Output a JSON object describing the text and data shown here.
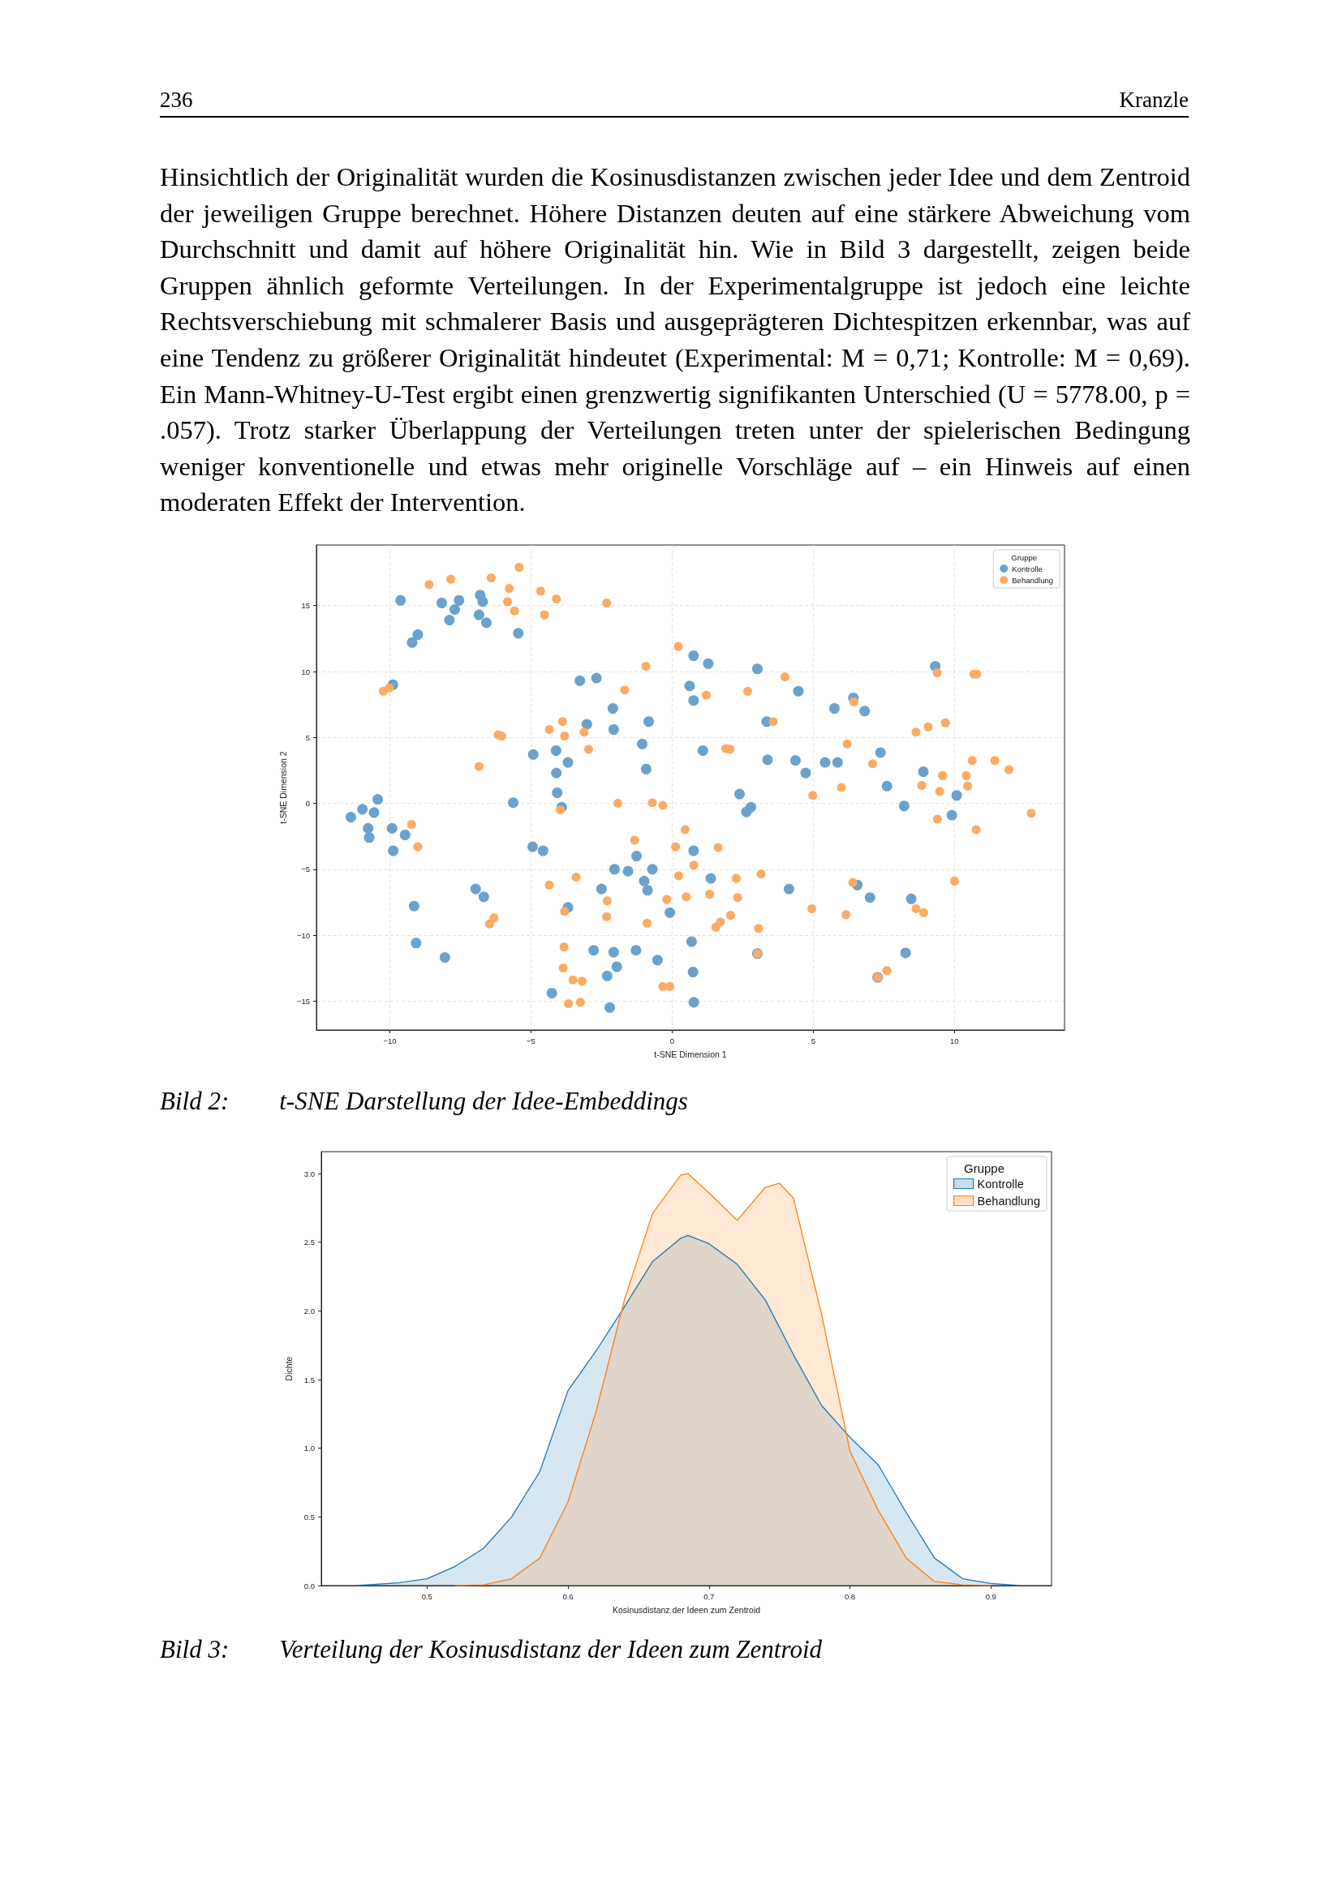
{
  "chart_data": [
    {
      "type": "scatter",
      "xlabel": "t-SNE Dimension 1",
      "ylabel": "t-SNE Dimension 2",
      "legend_title": "Gruppe",
      "annotations": [
        "236",
        "Kranzle",
        "Hinsichtlich der Originalität wurden die Kosinusdistanzen zwischen jeder Idee und dem Zentroid der jeweiligen Gruppe berechnet. Höhere Distanzen deuten auf eine stärkere Abweichung vom Durchschnitt und damit auf höhere Originalität hin. Wie in Bild 3 dargestellt, zeigen beide Gruppen ähnlich geformte Verteilungen. In der Experimentalgruppe ist jedoch eine leichte Rechtsverschiebung mit schmalerer Basis und ausgeprägteren Dichtespitzen erkennbar, was auf eine Tendenz zu größerer Originalität hindeutet (Experimental: M = 0,71; Kontrolle: M = 0,69). Ein Mann-Whitney-U-Test ergibt einen grenzwertig signifikanten Unterschied (U = 5778.00, p = .057). Trotz starker Überlappung der Verteilungen treten unter der spielerischen Bedingung weniger konventionelle und etwas mehr originelle Vorschläge auf – ein Hinweis auf einen moderaten Effekt der Intervention.",
        "Bild 2:  t-SNE Darstellung der Idee-Embeddings"
      ],
      "xlim": [
        -12.6,
        13.9
      ],
      "xticks": [
        -10,
        -5,
        0,
        5,
        10
      ],
      "ylim": [
        -17.2,
        19.6
      ],
      "yticks": [
        -15,
        -10,
        -5,
        0,
        5,
        10,
        15
      ],
      "grid": true,
      "legend": "top right",
      "marker": "circle",
      "series": [
        {
          "name": "Kontrolle",
          "color": "#6aa2cd",
          "x": [
            -9.62,
            -8.16,
            -7.55,
            -7.7,
            -7.89,
            -6.8,
            -6.71,
            -6.84,
            -6.58,
            -5.45,
            -9.01,
            -9.21,
            0.76,
            -9.89,
            -3.27,
            -2.68,
            -2.1,
            -3.02,
            -2.07,
            -0.83,
            -1.06,
            -0.92,
            0.62,
            0.76,
            -4.92,
            -4.11,
            -3.69,
            -4.1,
            -4.07,
            -3.91,
            -5.63,
            -10.43,
            -10.97,
            -10.56,
            -11.38,
            -10.77,
            -10.73,
            -9.92,
            -9.46,
            -9.88,
            -4.94,
            -4.57,
            -1.26,
            -2.04,
            -1.56,
            -0.7,
            -0.99,
            -0.87,
            -2.5,
            -0.08,
            -6.96,
            -6.67,
            -9.14,
            -3.69,
            -9.07,
            -8.05,
            -2.78,
            -2.07,
            -1.28,
            -1.96,
            -0.52,
            -2.3,
            -4.26,
            -2.21,
            0.69,
            0.74,
            0.77,
            0.76,
            1.09,
            1.28,
            3.02,
            4.47,
            6.42,
            5.75,
            6.82,
            3.35,
            3.38,
            4.37,
            4.73,
            5.42,
            5.86,
            7.38,
            8.9,
            7.61,
            2.39,
            2.79,
            2.63,
            8.22,
            10.08,
            9.91,
            9.32,
            1.37,
            4.14,
            6.56,
            7.01,
            8.47,
            8.27,
            7.28,
            3.02
          ],
          "values": [
            15.4,
            15.2,
            15.4,
            14.7,
            13.9,
            15.8,
            15.3,
            14.3,
            13.7,
            12.9,
            12.8,
            12.2,
            11.2,
            9.0,
            9.3,
            9.5,
            7.2,
            6.0,
            5.6,
            6.2,
            4.5,
            2.6,
            8.9,
            7.8,
            3.7,
            4.0,
            3.1,
            2.3,
            0.8,
            -0.3,
            0.05,
            0.3,
            -0.45,
            -0.7,
            -1.05,
            -1.9,
            -2.6,
            -1.9,
            -2.4,
            -3.6,
            -3.3,
            -3.6,
            -4.0,
            -5.0,
            -5.15,
            -5.0,
            -5.9,
            -6.6,
            -6.5,
            -8.3,
            -6.5,
            -7.1,
            -7.8,
            -7.9,
            -10.6,
            -11.7,
            -11.15,
            -11.3,
            -11.15,
            -12.4,
            -11.9,
            -13.1,
            -14.4,
            -15.5,
            -10.5,
            -12.8,
            -15.1,
            -3.6,
            4.0,
            10.6,
            10.2,
            8.5,
            8.0,
            7.2,
            7.0,
            6.2,
            3.3,
            3.25,
            2.3,
            3.1,
            3.1,
            3.85,
            2.4,
            1.3,
            0.7,
            -0.3,
            -0.65,
            -0.2,
            0.6,
            -0.9,
            10.4,
            -5.7,
            -6.5,
            -6.2,
            -7.15,
            -7.25,
            -11.35,
            -13.2,
            -11.4
          ]
        },
        {
          "name": "Behandlung",
          "color": "#fcab64",
          "x": [
            -8.61,
            -7.84,
            -6.41,
            -5.42,
            -5.77,
            -5.83,
            -5.58,
            -4.66,
            -4.1,
            -4.52,
            -2.32,
            0.22,
            -0.93,
            -1.68,
            -10.23,
            -10.02,
            -3.88,
            -4.35,
            -3.81,
            -3.12,
            -2.96,
            -6.16,
            -6.04,
            -6.84,
            -1.92,
            -0.7,
            -0.33,
            -3.96,
            -9.23,
            -9.01,
            0.46,
            -1.33,
            0.12,
            0.77,
            0.23,
            -3.4,
            -4.35,
            -2.3,
            -0.19,
            0.5,
            -3.81,
            -2.32,
            -0.89,
            -6.31,
            -6.47,
            -3.83,
            -3.86,
            -3.51,
            -3.19,
            -3.67,
            -3.25,
            -0.33,
            -0.08,
            4.0,
            1.21,
            2.68,
            3.58,
            6.44,
            9.39,
            10.69,
            10.79,
            8.64,
            9.07,
            9.68,
            6.2,
            1.9,
            2.05,
            7.1,
            10.63,
            11.43,
            11.93,
            9.58,
            10.42,
            8.84,
            10.47,
            9.48,
            6.0,
            4.98,
            9.4,
            10.77,
            12.72,
            1.63,
            3.15,
            2.27,
            6.4,
            10.0,
            1.33,
            2.32,
            4.95,
            6.16,
            8.64,
            8.91,
            2.07,
            1.71,
            1.55,
            3.06,
            7.61,
            7.28,
            3.02
          ],
          "values": [
            16.6,
            17.0,
            17.1,
            17.9,
            16.3,
            15.3,
            14.6,
            16.1,
            15.5,
            14.3,
            15.2,
            11.9,
            10.4,
            8.6,
            8.5,
            8.75,
            6.2,
            5.6,
            5.1,
            5.4,
            4.1,
            5.2,
            5.1,
            2.8,
            0.0,
            0.05,
            -0.15,
            -0.5,
            -1.6,
            -3.3,
            -2.0,
            -2.8,
            -3.3,
            -4.7,
            -5.5,
            -5.6,
            -6.2,
            -7.4,
            -7.3,
            -7.1,
            -8.2,
            -8.6,
            -9.1,
            -8.7,
            -9.15,
            -10.9,
            -12.5,
            -13.4,
            -13.5,
            -15.2,
            -15.1,
            -13.9,
            -13.9,
            9.6,
            8.2,
            8.5,
            6.2,
            7.7,
            9.9,
            9.8,
            9.8,
            5.4,
            5.8,
            6.1,
            4.5,
            4.15,
            4.1,
            3.0,
            3.25,
            3.25,
            2.55,
            2.1,
            2.1,
            1.35,
            1.3,
            0.9,
            1.2,
            0.6,
            -1.2,
            -2.0,
            -0.75,
            -3.35,
            -5.35,
            -5.7,
            -6.0,
            -5.9,
            -6.9,
            -7.15,
            -8.0,
            -8.45,
            -8.0,
            -8.3,
            -8.5,
            -9.0,
            -9.4,
            -9.5,
            -12.7,
            -13.2,
            -11.4
          ]
        }
      ]
    },
    {
      "type": "area",
      "xlabel": "Kosinusdistanz der Ideen zum Zentroid",
      "ylabel": "Dichte",
      "legend_title": "Gruppe",
      "annotations": [
        "Bild 3:  Verteilung der Kosinusdistanz der Ideen zum Zentroid"
      ],
      "xlim": [
        0.425,
        0.943
      ],
      "xticks": [
        0.5,
        0.6,
        0.7,
        0.8,
        0.9
      ],
      "ylim": [
        0,
        3.16
      ],
      "yticks": [
        {
          "value": 0,
          "label": "0.0"
        },
        0.5,
        {
          "value": 1,
          "label": "1.0"
        },
        1.5,
        {
          "value": 2,
          "label": "2.0"
        },
        2.5,
        {
          "value": 3,
          "label": "3.0"
        }
      ],
      "grid": false,
      "legend": "top right",
      "series": [
        {
          "name": "Kontrolle",
          "color": "#1f77b4",
          "x": [
            0.45,
            0.48,
            0.5,
            0.52,
            0.54,
            0.56,
            0.58,
            0.6,
            0.62,
            0.64,
            0.66,
            0.68,
            0.685,
            0.7,
            0.72,
            0.74,
            0.76,
            0.78,
            0.8,
            0.82,
            0.84,
            0.86,
            0.88,
            0.9,
            0.92
          ],
          "values": [
            0,
            0.02,
            0.05,
            0.14,
            0.27,
            0.5,
            0.83,
            1.42,
            1.71,
            2.03,
            2.36,
            2.53,
            2.55,
            2.49,
            2.34,
            2.08,
            1.68,
            1.31,
            1.08,
            0.88,
            0.53,
            0.2,
            0.05,
            0.015,
            0
          ]
        },
        {
          "name": "Behandlung",
          "color": "#ff7f0e",
          "x": [
            0.52,
            0.54,
            0.56,
            0.58,
            0.6,
            0.62,
            0.64,
            0.66,
            0.68,
            0.685,
            0.7,
            0.72,
            0.74,
            0.75,
            0.76,
            0.78,
            0.8,
            0.82,
            0.84,
            0.86,
            0.88,
            0.9
          ],
          "values": [
            0,
            0.005,
            0.05,
            0.2,
            0.61,
            1.27,
            2.08,
            2.71,
            2.99,
            3.0,
            2.86,
            2.66,
            2.9,
            2.93,
            2.82,
            1.97,
            0.98,
            0.55,
            0.2,
            0.03,
            0.005,
            0
          ]
        }
      ]
    }
  ]
}
